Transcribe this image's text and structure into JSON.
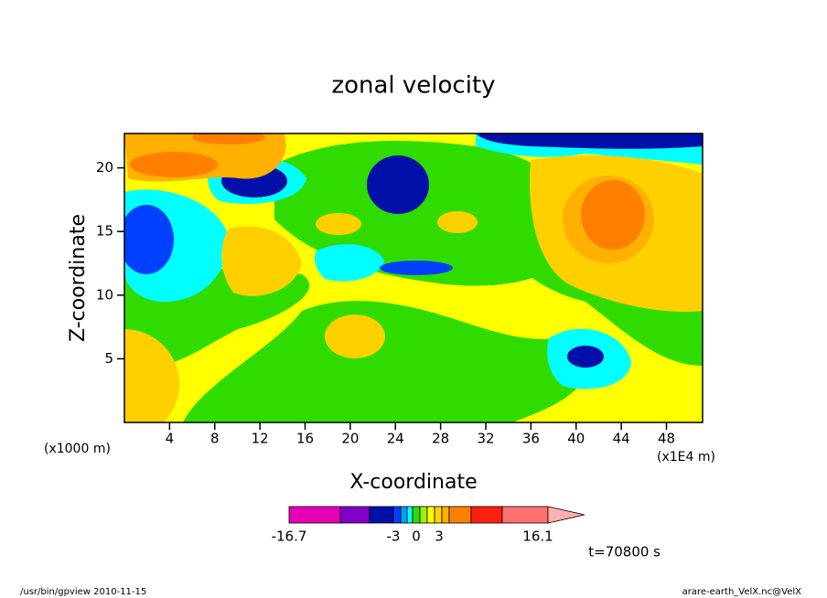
{
  "chart_data": {
    "type": "contour",
    "title": "zonal velocity",
    "x_label": "X-coordinate",
    "y_label": "Z-coordinate",
    "x_unit": "(x1E4 m)",
    "y_unit": "(x1000 m)",
    "xlim": [
      0,
      51.2
    ],
    "ylim": [
      0,
      22.7
    ],
    "xticks": [
      4,
      8,
      12,
      16,
      20,
      24,
      28,
      32,
      36,
      40,
      44,
      48
    ],
    "yticks": [
      5,
      10,
      15,
      20
    ],
    "colorbar": {
      "colors": [
        "#e600b4",
        "#8200c8",
        "#0010a8",
        "#0040ff",
        "#00a0ff",
        "#00ffff",
        "#30dc00",
        "#a0f000",
        "#ffff00",
        "#ffd000",
        "#ffb000",
        "#ff8000",
        "#ff2010",
        "#ff7070",
        "#ffb0b0"
      ],
      "ticks": [
        {
          "value": -16.7,
          "label": "-16.7"
        },
        -3,
        0,
        3,
        16.1
      ]
    },
    "time_label": "t=70800 s",
    "footer_left": "/usr/bin/gpview  2010-11-15",
    "footer_right": "arare-earth_VelX.nc@VelX"
  }
}
